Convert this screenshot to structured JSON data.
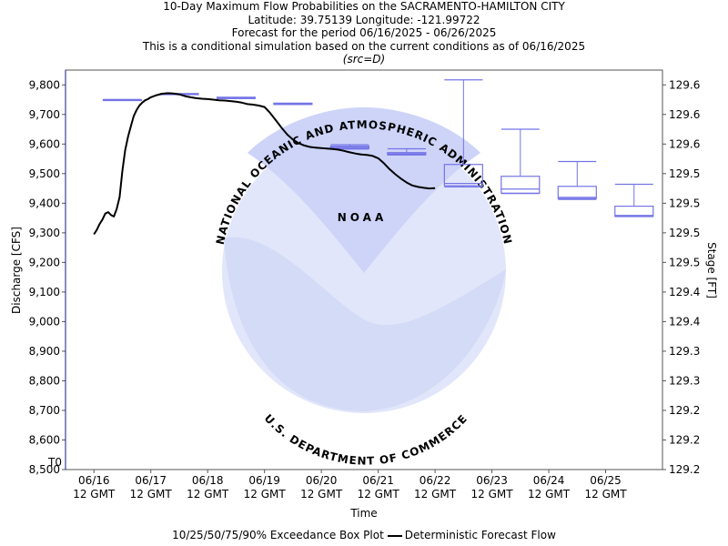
{
  "header": {
    "title": "10-Day Maximum Flow Probabilities on the SACRAMENTO-HAMILTON CITY",
    "location": "Latitude: 39.75139 Longitude: -121.99722",
    "period": "Forecast for the period 06/16/2025 - 06/26/2025",
    "note": "This is a conditional simulation based on the current conditions as of 06/16/2025",
    "source": "(src=D)"
  },
  "legend": {
    "boxplot_label": "10/25/50/75/90% Exceedance Box Plot",
    "deterministic_label": "Deterministic Forecast Flow"
  },
  "chart_data": {
    "type": "boxplot+line",
    "xlabel": "Time",
    "ylabel": "Discharge [CFS]",
    "y2label": "Stage [FT]",
    "ylim": [
      8500,
      9850
    ],
    "xlim": [
      -0.5,
      10
    ],
    "x_ticks": [
      {
        "x": 0,
        "line1": "06/16",
        "line2": "12 GMT"
      },
      {
        "x": 1,
        "line1": "06/17",
        "line2": "12 GMT"
      },
      {
        "x": 2,
        "line1": "06/18",
        "line2": "12 GMT"
      },
      {
        "x": 3,
        "line1": "06/19",
        "line2": "12 GMT"
      },
      {
        "x": 4,
        "line1": "06/20",
        "line2": "12 GMT"
      },
      {
        "x": 5,
        "line1": "06/21",
        "line2": "12 GMT"
      },
      {
        "x": 6,
        "line1": "06/22",
        "line2": "12 GMT"
      },
      {
        "x": 7,
        "line1": "06/23",
        "line2": "12 GMT"
      },
      {
        "x": 8,
        "line1": "06/24",
        "line2": "12 GMT"
      },
      {
        "x": 9,
        "line1": "06/25",
        "line2": "12 GMT"
      }
    ],
    "y_ticks": [
      8500,
      8600,
      8700,
      8800,
      8900,
      9000,
      9100,
      9200,
      9300,
      9400,
      9500,
      9600,
      9700,
      9800
    ],
    "y_tick_labels": [
      "8,500",
      "8,600",
      "8,700",
      "8,800",
      "8,900",
      "9,000",
      "9,100",
      "9,200",
      "9,300",
      "9,400",
      "9,500",
      "9,600",
      "9,700",
      "9,800"
    ],
    "y2_tick_labels": [
      "129.2",
      "129.2",
      "129.2",
      "129.3",
      "129.3",
      "129.4",
      "129.4",
      "129.5",
      "129.5",
      "129.5",
      "129.5",
      "129.6",
      "129.6",
      "129.6"
    ],
    "t0": {
      "x": -0.5,
      "label": "T0"
    },
    "boxes": [
      {
        "x": 0.5,
        "p10": 9750,
        "p25": 9750,
        "p50": 9750,
        "p75": 9750,
        "p90": 9750
      },
      {
        "x": 1.5,
        "p10": 9770,
        "p25": 9770,
        "p50": 9770,
        "p75": 9770,
        "p90": 9770
      },
      {
        "x": 2.5,
        "p10": 9754,
        "p25": 9754,
        "p50": 9756,
        "p75": 9758,
        "p90": 9758
      },
      {
        "x": 3.5,
        "p10": 9734,
        "p25": 9734,
        "p50": 9736,
        "p75": 9738,
        "p90": 9738
      },
      {
        "x": 4.5,
        "p10": 9583,
        "p25": 9585,
        "p50": 9589,
        "p75": 9593,
        "p90": 9598
      },
      {
        "x": 5.5,
        "p10": 9563,
        "p25": 9564,
        "p50": 9567,
        "p75": 9571,
        "p90": 9584
      },
      {
        "x": 6.5,
        "p10": 9455,
        "p25": 9459,
        "p50": 9467,
        "p75": 9531,
        "p90": 9817
      },
      {
        "x": 7.5,
        "p10": 9433,
        "p25": 9434,
        "p50": 9448,
        "p75": 9491,
        "p90": 9650
      },
      {
        "x": 8.5,
        "p10": 9413,
        "p25": 9416,
        "p50": 9420,
        "p75": 9457,
        "p90": 9541
      },
      {
        "x": 9.5,
        "p10": 9355,
        "p25": 9356,
        "p50": 9359,
        "p75": 9390,
        "p90": 9464
      }
    ],
    "deterministic": {
      "name": "Deterministic Forecast Flow",
      "x": [
        0,
        0.05,
        0.1,
        0.15,
        0.2,
        0.25,
        0.3,
        0.35,
        0.4,
        0.45,
        0.5,
        0.55,
        0.6,
        0.65,
        0.7,
        0.75,
        0.8,
        0.85,
        0.9,
        0.95,
        1.0,
        1.1,
        1.2,
        1.3,
        1.4,
        1.5,
        1.6,
        1.7,
        1.8,
        1.9,
        2.0,
        2.1,
        2.2,
        2.3,
        2.4,
        2.5,
        2.6,
        2.7,
        2.8,
        2.9,
        3.0,
        3.1,
        3.2,
        3.3,
        3.4,
        3.5,
        3.6,
        3.7,
        3.8,
        3.9,
        4.0,
        4.1,
        4.2,
        4.3,
        4.4,
        4.5,
        4.6,
        4.7,
        4.8,
        4.9,
        5.0,
        5.1,
        5.2,
        5.3,
        5.4,
        5.5,
        5.6,
        5.7,
        5.8,
        5.9,
        6.0
      ],
      "y": [
        9295,
        9310,
        9330,
        9345,
        9365,
        9370,
        9360,
        9355,
        9380,
        9420,
        9510,
        9580,
        9625,
        9660,
        9695,
        9715,
        9730,
        9740,
        9748,
        9752,
        9758,
        9765,
        9770,
        9772,
        9771,
        9768,
        9762,
        9758,
        9755,
        9753,
        9752,
        9750,
        9748,
        9747,
        9745,
        9743,
        9740,
        9735,
        9733,
        9730,
        9725,
        9705,
        9680,
        9655,
        9632,
        9615,
        9603,
        9595,
        9590,
        9588,
        9586,
        9585,
        9583,
        9581,
        9577,
        9572,
        9568,
        9565,
        9563,
        9560,
        9552,
        9535,
        9515,
        9498,
        9483,
        9470,
        9460,
        9455,
        9452,
        9450,
        9451
      ]
    }
  },
  "watermark": {
    "logo_text": "NOAA",
    "ring_text_top": "NATIONAL OCEANIC AND ATMOSPHERIC ADMINISTRATION",
    "ring_text_bottom": "U.S. DEPARTMENT OF COMMERCE"
  }
}
